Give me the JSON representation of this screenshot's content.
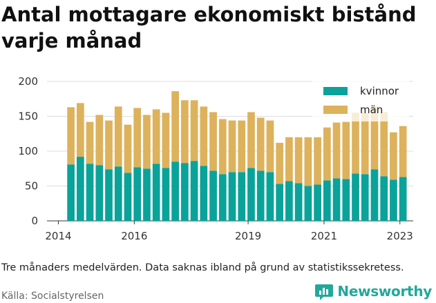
{
  "title": "Antal mottagare ekonomiskt bistånd varje månad",
  "footnote": "Tre månaders medelvärden. Data saknas ibland på grund av statistikssekretess.",
  "source": "Källa: Socialstyrelsen",
  "brand": {
    "name": "Newsworthy",
    "icon": "newsworthy-logo-icon",
    "color": "#22a89a"
  },
  "colors": {
    "kvinnor": "#0aa39a",
    "man": "#ddb25c"
  },
  "chart_data": {
    "type": "bar",
    "stacked": true,
    "title": "Antal mottagare ekonomiskt bistånd varje månad",
    "xlabel": "",
    "ylabel": "",
    "ylim": [
      0,
      200
    ],
    "yticks": [
      "0",
      "50",
      "100",
      "150",
      "200"
    ],
    "xticks": [
      "2014",
      "2016",
      "2019",
      "2021",
      "2023"
    ],
    "xlim": [
      2013.7,
      2023.35
    ],
    "grid": true,
    "legend_position": "top-right",
    "x": [
      2014.33,
      2014.58,
      2014.83,
      2015.08,
      2015.33,
      2015.58,
      2015.83,
      2016.08,
      2016.33,
      2016.58,
      2016.83,
      2017.08,
      2017.33,
      2017.58,
      2017.83,
      2018.08,
      2018.33,
      2018.58,
      2018.83,
      2019.08,
      2019.33,
      2019.58,
      2019.83,
      2020.08,
      2020.33,
      2020.58,
      2020.83,
      2021.08,
      2021.33,
      2021.58,
      2021.83,
      2022.08,
      2022.33,
      2022.58,
      2022.83,
      2023.08
    ],
    "series": [
      {
        "name": "kvinnor",
        "values": [
          81,
          92,
          82,
          80,
          74,
          78,
          69,
          77,
          75,
          82,
          76,
          85,
          83,
          86,
          79,
          72,
          67,
          70,
          70,
          76,
          72,
          70,
          53,
          57,
          54,
          50,
          52,
          58,
          61,
          60,
          68,
          67,
          74,
          64,
          59,
          63
        ]
      },
      {
        "name": "män",
        "values": [
          82,
          77,
          60,
          72,
          70,
          86,
          69,
          85,
          77,
          78,
          79,
          101,
          90,
          87,
          85,
          84,
          79,
          74,
          74,
          80,
          76,
          74,
          59,
          63,
          66,
          70,
          68,
          76,
          80,
          82,
          87,
          88,
          90,
          92,
          68,
          73
        ]
      }
    ]
  }
}
